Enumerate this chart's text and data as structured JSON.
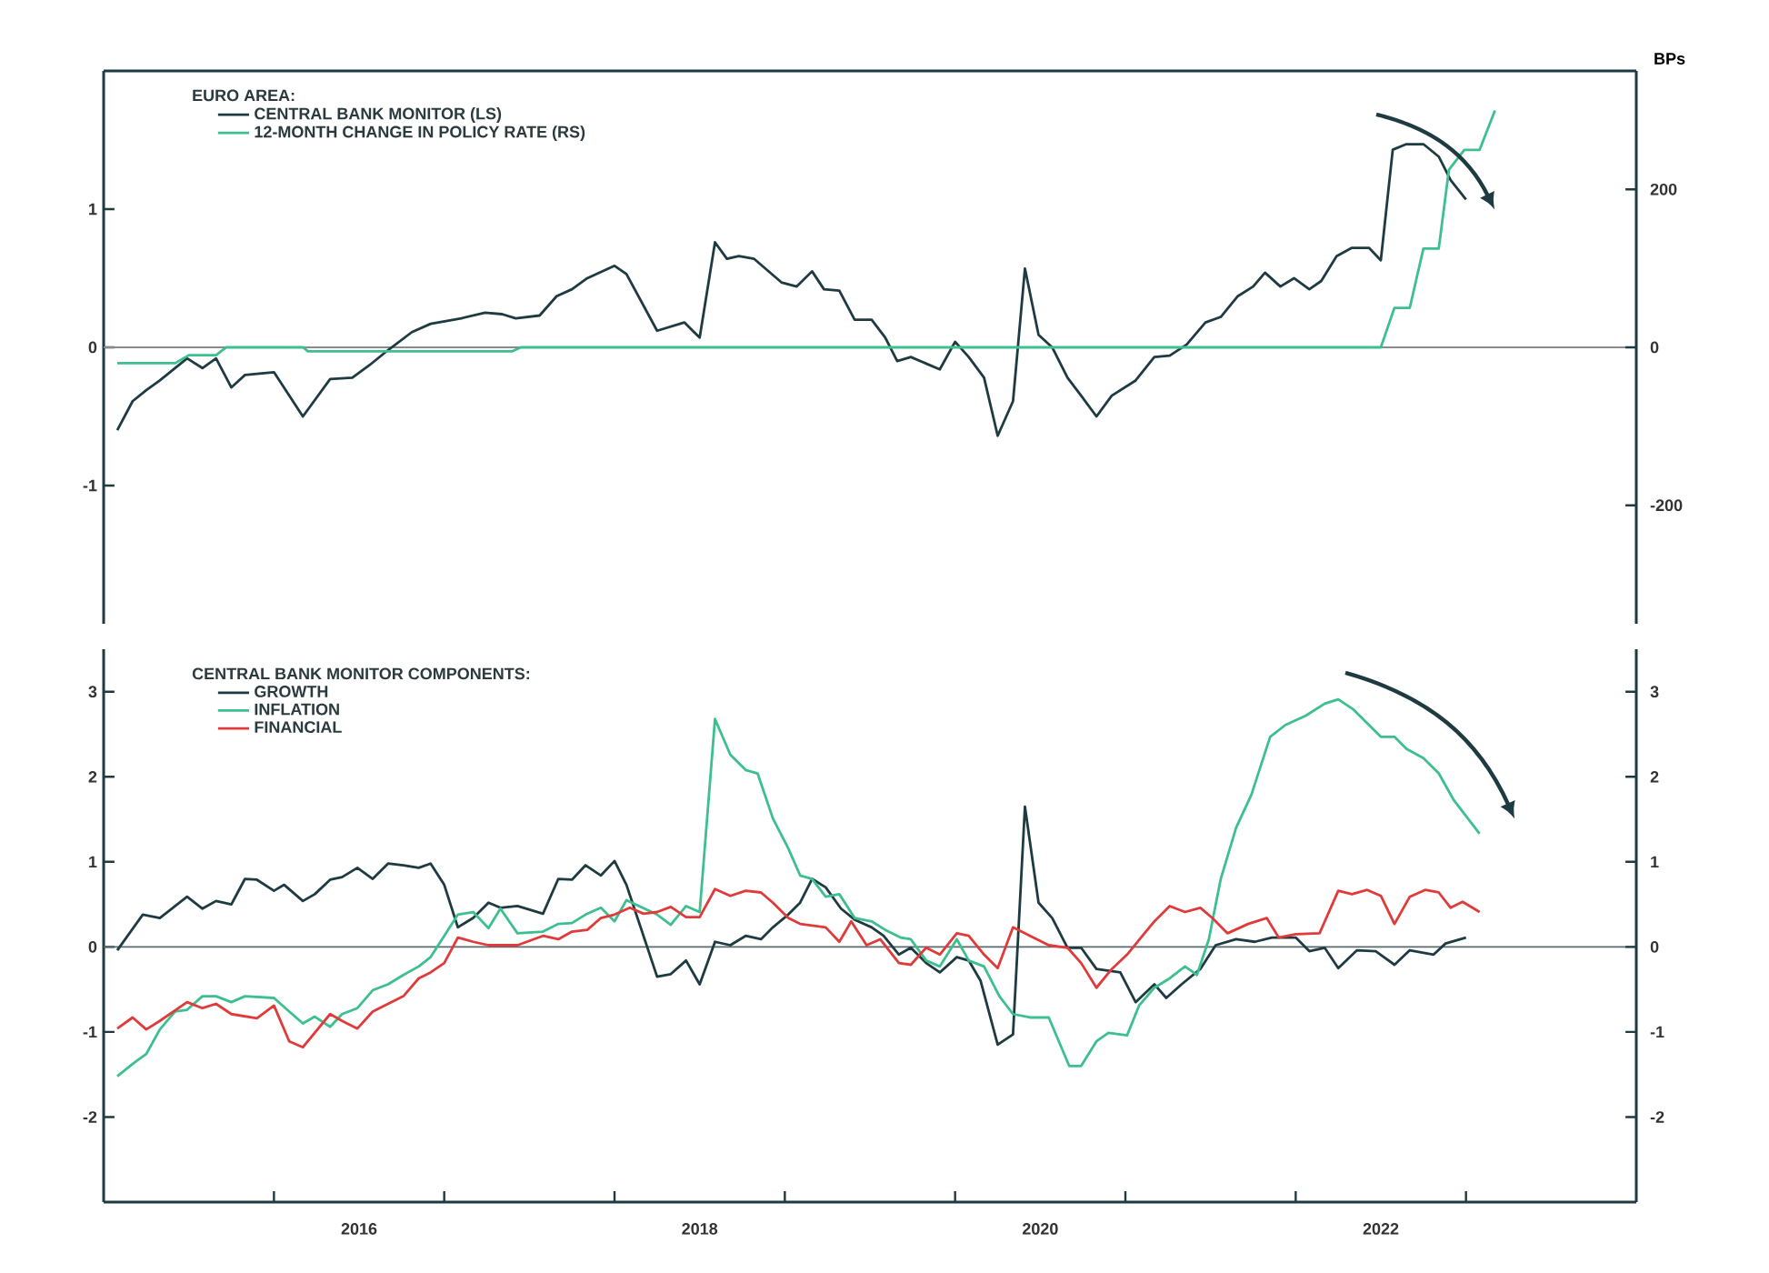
{
  "chart_data": [
    {
      "type": "line",
      "legend_title": "EURO AREA:",
      "y2label": "BPs",
      "legend": "top left",
      "tick_labels": "y",
      "xlim": [
        2015,
        2024
      ],
      "ylim": [
        -2,
        2
      ],
      "yticks": [
        -1,
        0,
        1
      ],
      "y2lim": [
        -350,
        350
      ],
      "y2ticks": [
        -200,
        0,
        200
      ],
      "ref_lines": [
        {
          "axis": "y",
          "value": 0,
          "color": "#8a8a8a"
        }
      ],
      "series": [
        {
          "name": "CENTRAL BANK MONITOR (LS)",
          "color": "#1f3b42",
          "x": [
            2015.08,
            2015.17,
            2015.25,
            2015.33,
            2015.49,
            2015.58,
            2015.66,
            2015.75,
            2015.83,
            2016.0,
            2016.17,
            2016.33,
            2016.46,
            2016.56,
            2016.67,
            2016.81,
            2016.92,
            2017.1,
            2017.24,
            2017.34,
            2017.42,
            2017.56,
            2017.66,
            2017.75,
            2017.84,
            2018.0,
            2018.07,
            2018.25,
            2018.41,
            2018.5,
            2018.59,
            2018.66,
            2018.73,
            2018.82,
            2018.98,
            2019.07,
            2019.16,
            2019.23,
            2019.32,
            2019.41,
            2019.51,
            2019.59,
            2019.66,
            2019.74,
            2019.91,
            2020.0,
            2020.08,
            2020.17,
            2020.25,
            2020.34,
            2020.41,
            2020.49,
            2020.57,
            2020.66,
            2020.74,
            2020.83,
            2020.92,
            2021.06,
            2021.17,
            2021.26,
            2021.36,
            2021.47,
            2021.56,
            2021.66,
            2021.75,
            2021.82,
            2021.91,
            2021.99,
            2022.08,
            2022.15,
            2022.24,
            2022.33,
            2022.43,
            2022.5,
            2022.57,
            2022.65,
            2022.75,
            2022.84,
            2022.91,
            2023.0
          ],
          "values": [
            -0.6,
            -0.39,
            -0.31,
            -0.24,
            -0.08,
            -0.15,
            -0.08,
            -0.29,
            -0.2,
            -0.18,
            -0.5,
            -0.23,
            -0.22,
            -0.13,
            -0.02,
            0.11,
            0.17,
            0.21,
            0.25,
            0.24,
            0.21,
            0.23,
            0.37,
            0.42,
            0.5,
            0.59,
            0.53,
            0.12,
            0.18,
            0.07,
            0.76,
            0.64,
            0.66,
            0.64,
            0.47,
            0.44,
            0.55,
            0.42,
            0.41,
            0.2,
            0.2,
            0.07,
            -0.1,
            -0.07,
            -0.16,
            0.04,
            -0.07,
            -0.22,
            -0.64,
            -0.39,
            0.57,
            0.09,
            0.0,
            -0.22,
            -0.35,
            -0.5,
            -0.35,
            -0.24,
            -0.07,
            -0.06,
            0.02,
            0.18,
            0.22,
            0.37,
            0.44,
            0.54,
            0.44,
            0.5,
            0.42,
            0.48,
            0.66,
            0.72,
            0.72,
            0.63,
            1.43,
            1.47,
            1.47,
            1.38,
            1.21,
            1.07
          ]
        },
        {
          "name": "12-MONTH CHANGE IN POLICY RATE (RS)",
          "color": "#3dbf8f",
          "axis": "y2",
          "x": [
            2015.08,
            2015.42,
            2015.5,
            2015.66,
            2015.72,
            2016.17,
            2016.2,
            2017.4,
            2017.45,
            2022.5,
            2022.58,
            2022.67,
            2022.75,
            2022.84,
            2022.9,
            2022.99,
            2023.08,
            2023.17
          ],
          "values": [
            -20,
            -20,
            -10,
            -10,
            0,
            0,
            -5,
            -5,
            0,
            0,
            50,
            50,
            125,
            125,
            225,
            250,
            250,
            300
          ]
        }
      ]
    },
    {
      "type": "line",
      "legend_title": "CENTRAL BANK MONITOR COMPONENTS:",
      "legend": "top left",
      "xlim": [
        2015,
        2024
      ],
      "xticks": [
        {
          "value": 2016,
          "label": null
        },
        {
          "value": 2016.5,
          "label": "2016"
        },
        {
          "value": 2017,
          "label": null
        },
        {
          "value": 2018,
          "label": null
        },
        {
          "value": 2018.5,
          "label": "2018"
        },
        {
          "value": 2019,
          "label": null
        },
        {
          "value": 2020,
          "label": null
        },
        {
          "value": 2020.5,
          "label": "2020"
        },
        {
          "value": 2021,
          "label": null
        },
        {
          "value": 2022,
          "label": null
        },
        {
          "value": 2022.5,
          "label": "2022"
        },
        {
          "value": 2023,
          "label": null
        }
      ],
      "ylim": [
        -3,
        3.5
      ],
      "yticks": [
        -2,
        -1,
        0,
        1,
        2,
        3
      ],
      "y2lim": [
        -3,
        3.5
      ],
      "y2ticks": [
        -2,
        -1,
        0,
        1,
        2,
        3
      ],
      "ref_lines": [
        {
          "axis": "y",
          "value": 0,
          "color": "#5a6a6e"
        }
      ],
      "series": [
        {
          "name": "GROWTH",
          "color": "#1f3b42",
          "x": [
            2015.08,
            2015.23,
            2015.33,
            2015.49,
            2015.58,
            2015.66,
            2015.75,
            2015.83,
            2015.9,
            2016.0,
            2016.06,
            2016.17,
            2016.24,
            2016.33,
            2016.4,
            2016.49,
            2016.58,
            2016.67,
            2016.76,
            2016.85,
            2016.92,
            2017.0,
            2017.08,
            2017.17,
            2017.26,
            2017.33,
            2017.43,
            2017.58,
            2017.67,
            2017.75,
            2017.83,
            2017.92,
            2018.0,
            2018.07,
            2018.25,
            2018.33,
            2018.42,
            2018.5,
            2018.59,
            2018.68,
            2018.77,
            2018.86,
            2018.93,
            2019.02,
            2019.09,
            2019.16,
            2019.24,
            2019.33,
            2019.41,
            2019.51,
            2019.58,
            2019.67,
            2019.74,
            2019.83,
            2019.91,
            2020.01,
            2020.08,
            2020.15,
            2020.25,
            2020.34,
            2020.41,
            2020.49,
            2020.57,
            2020.66,
            2020.74,
            2020.83,
            2020.97,
            2021.06,
            2021.17,
            2021.24,
            2021.33,
            2021.44,
            2021.53,
            2021.65,
            2021.76,
            2021.86,
            2022.0,
            2022.08,
            2022.17,
            2022.25,
            2022.36,
            2022.47,
            2022.58,
            2022.67,
            2022.81,
            2022.88,
            2023.0
          ],
          "values": [
            -0.04,
            0.38,
            0.34,
            0.59,
            0.45,
            0.54,
            0.5,
            0.8,
            0.79,
            0.66,
            0.73,
            0.54,
            0.62,
            0.79,
            0.82,
            0.93,
            0.8,
            0.98,
            0.96,
            0.93,
            0.98,
            0.73,
            0.23,
            0.34,
            0.52,
            0.46,
            0.48,
            0.39,
            0.8,
            0.79,
            0.96,
            0.84,
            1.01,
            0.73,
            -0.35,
            -0.32,
            -0.16,
            -0.44,
            0.06,
            0.02,
            0.13,
            0.09,
            0.23,
            0.38,
            0.52,
            0.8,
            0.7,
            0.45,
            0.32,
            0.23,
            0.13,
            -0.09,
            -0.01,
            -0.19,
            -0.3,
            -0.12,
            -0.16,
            -0.4,
            -1.15,
            -1.03,
            1.65,
            0.52,
            0.34,
            -0.01,
            -0.01,
            -0.26,
            -0.3,
            -0.65,
            -0.44,
            -0.6,
            -0.44,
            -0.26,
            0.02,
            0.09,
            0.06,
            0.11,
            0.11,
            -0.05,
            -0.01,
            -0.25,
            -0.04,
            -0.05,
            -0.21,
            -0.04,
            -0.09,
            0.04,
            0.11
          ]
        },
        {
          "name": "INFLATION",
          "color": "#3dbf8f",
          "x": [
            2015.08,
            2015.18,
            2015.25,
            2015.33,
            2015.42,
            2015.49,
            2015.58,
            2015.66,
            2015.75,
            2015.83,
            2016.0,
            2016.09,
            2016.17,
            2016.24,
            2016.33,
            2016.4,
            2016.49,
            2016.58,
            2016.67,
            2016.76,
            2016.85,
            2016.92,
            2017.0,
            2017.08,
            2017.17,
            2017.26,
            2017.33,
            2017.43,
            2017.58,
            2017.67,
            2017.75,
            2017.83,
            2017.92,
            2018.0,
            2018.07,
            2018.25,
            2018.33,
            2018.42,
            2018.5,
            2018.59,
            2018.68,
            2018.77,
            2018.84,
            2018.93,
            2019.02,
            2019.09,
            2019.16,
            2019.24,
            2019.32,
            2019.41,
            2019.51,
            2019.59,
            2019.68,
            2019.74,
            2019.83,
            2019.91,
            2020.01,
            2020.08,
            2020.17,
            2020.26,
            2020.34,
            2020.44,
            2020.55,
            2020.67,
            2020.74,
            2020.83,
            2020.9,
            2021.01,
            2021.08,
            2021.17,
            2021.26,
            2021.35,
            2021.42,
            2021.49,
            2021.56,
            2021.65,
            2021.74,
            2021.85,
            2021.94,
            2022.06,
            2022.17,
            2022.25,
            2022.34,
            2022.43,
            2022.5,
            2022.58,
            2022.65,
            2022.75,
            2022.84,
            2022.93,
            2023.08
          ],
          "values": [
            -1.52,
            -1.36,
            -1.26,
            -0.97,
            -0.76,
            -0.74,
            -0.58,
            -0.58,
            -0.65,
            -0.58,
            -0.6,
            -0.76,
            -0.9,
            -0.82,
            -0.94,
            -0.79,
            -0.72,
            -0.51,
            -0.44,
            -0.33,
            -0.23,
            -0.12,
            0.13,
            0.38,
            0.41,
            0.22,
            0.45,
            0.16,
            0.18,
            0.27,
            0.28,
            0.38,
            0.46,
            0.3,
            0.55,
            0.38,
            0.26,
            0.48,
            0.41,
            2.68,
            2.26,
            2.08,
            2.04,
            1.51,
            1.16,
            0.84,
            0.8,
            0.59,
            0.62,
            0.34,
            0.3,
            0.2,
            0.11,
            0.09,
            -0.16,
            -0.23,
            0.09,
            -0.16,
            -0.23,
            -0.58,
            -0.79,
            -0.83,
            -0.83,
            -1.4,
            -1.4,
            -1.11,
            -1.01,
            -1.04,
            -0.69,
            -0.48,
            -0.37,
            -0.23,
            -0.33,
            0.09,
            0.8,
            1.4,
            1.79,
            2.47,
            2.61,
            2.72,
            2.86,
            2.91,
            2.79,
            2.61,
            2.47,
            2.47,
            2.33,
            2.22,
            2.04,
            1.72,
            1.33
          ]
        },
        {
          "name": "FINANCIAL",
          "color": "#e03a3a",
          "x": [
            2015.08,
            2015.17,
            2015.25,
            2015.33,
            2015.49,
            2015.58,
            2015.66,
            2015.75,
            2015.9,
            2016.0,
            2016.09,
            2016.17,
            2016.33,
            2016.4,
            2016.49,
            2016.58,
            2016.67,
            2016.76,
            2016.85,
            2016.92,
            2017.0,
            2017.08,
            2017.17,
            2017.26,
            2017.43,
            2017.58,
            2017.67,
            2017.75,
            2017.84,
            2017.92,
            2018.0,
            2018.09,
            2018.17,
            2018.25,
            2018.33,
            2018.42,
            2018.5,
            2018.59,
            2018.68,
            2018.77,
            2018.86,
            2018.93,
            2019.02,
            2019.09,
            2019.16,
            2019.24,
            2019.32,
            2019.39,
            2019.48,
            2019.56,
            2019.67,
            2019.74,
            2019.83,
            2019.91,
            2020.01,
            2020.08,
            2020.17,
            2020.25,
            2020.34,
            2020.44,
            2020.55,
            2020.66,
            2020.74,
            2020.83,
            2020.92,
            2021.01,
            2021.1,
            2021.17,
            2021.26,
            2021.35,
            2021.44,
            2021.51,
            2021.6,
            2021.72,
            2021.83,
            2021.9,
            2022.0,
            2022.14,
            2022.25,
            2022.33,
            2022.42,
            2022.5,
            2022.58,
            2022.67,
            2022.76,
            2022.84,
            2022.91,
            2022.98,
            2023.08
          ],
          "values": [
            -0.96,
            -0.83,
            -0.97,
            -0.87,
            -0.65,
            -0.72,
            -0.67,
            -0.79,
            -0.84,
            -0.69,
            -1.11,
            -1.18,
            -0.79,
            -0.87,
            -0.96,
            -0.76,
            -0.67,
            -0.58,
            -0.37,
            -0.3,
            -0.19,
            0.11,
            0.06,
            0.02,
            0.02,
            0.13,
            0.09,
            0.18,
            0.2,
            0.34,
            0.38,
            0.46,
            0.39,
            0.41,
            0.47,
            0.35,
            0.35,
            0.68,
            0.6,
            0.66,
            0.64,
            0.52,
            0.34,
            0.27,
            0.25,
            0.23,
            0.06,
            0.3,
            0.02,
            0.09,
            -0.19,
            -0.21,
            -0.01,
            -0.09,
            0.16,
            0.13,
            -0.09,
            -0.25,
            0.23,
            0.13,
            0.02,
            -0.01,
            -0.19,
            -0.48,
            -0.26,
            -0.09,
            0.13,
            0.3,
            0.48,
            0.41,
            0.46,
            0.34,
            0.16,
            0.27,
            0.34,
            0.11,
            0.15,
            0.16,
            0.66,
            0.62,
            0.67,
            0.6,
            0.27,
            0.59,
            0.67,
            0.64,
            0.46,
            0.53,
            0.41
          ]
        }
      ]
    }
  ]
}
